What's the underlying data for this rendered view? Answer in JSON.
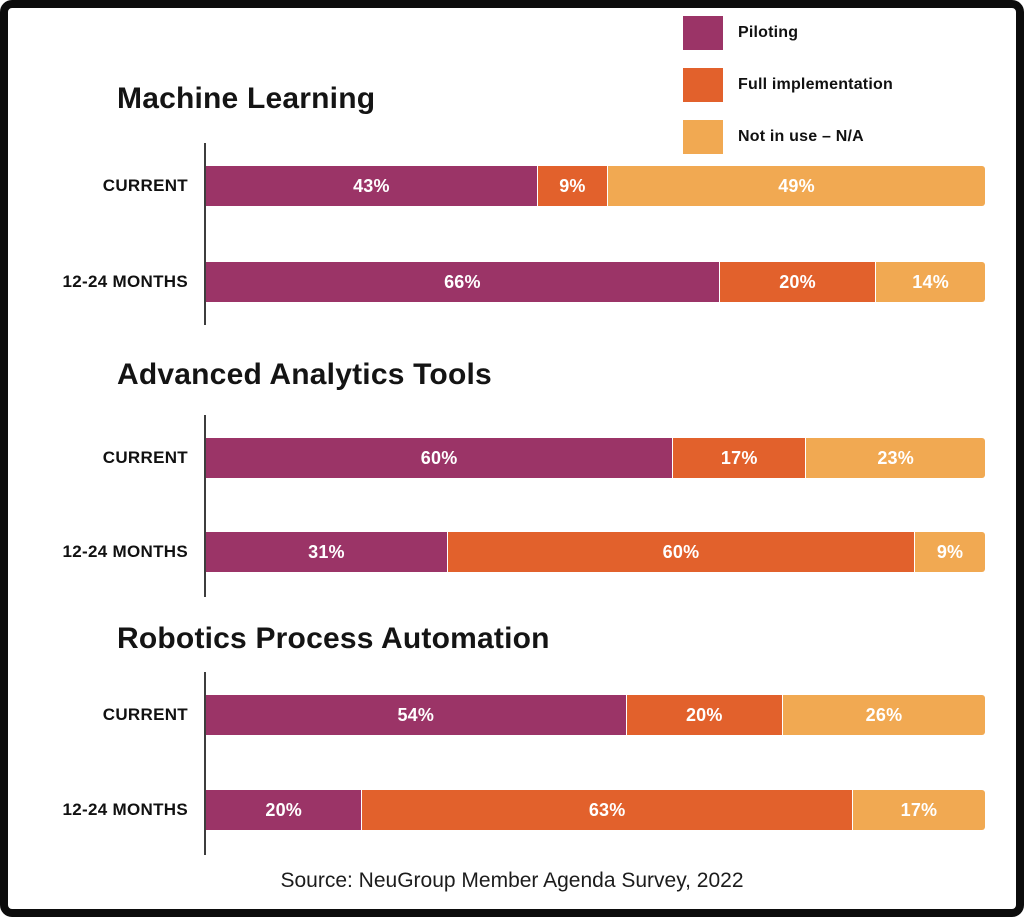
{
  "chart_data": {
    "type": "bar",
    "orientation": "horizontal",
    "stacked": true,
    "unit": "%",
    "xlim": [
      0,
      100
    ],
    "grid": false,
    "legend_position": "top-right",
    "legend": [
      {
        "label": "Piloting",
        "color": "#9B3467"
      },
      {
        "label": "Full implementation",
        "color": "#E2612C"
      },
      {
        "label": "Not in use – N/A",
        "color": "#F1A952"
      }
    ],
    "groups": [
      {
        "title": "Machine Learning",
        "rows": [
          {
            "label": "CURRENT",
            "values": [
              43,
              9,
              49
            ]
          },
          {
            "label": "12-24 MONTHS",
            "values": [
              66,
              20,
              14
            ]
          }
        ]
      },
      {
        "title": "Advanced Analytics Tools",
        "rows": [
          {
            "label": "CURRENT",
            "values": [
              60,
              17,
              23
            ]
          },
          {
            "label": "12-24 MONTHS",
            "values": [
              31,
              60,
              9
            ]
          }
        ]
      },
      {
        "title": "Robotics Process Automation",
        "rows": [
          {
            "label": "CURRENT",
            "values": [
              54,
              20,
              26
            ]
          },
          {
            "label": "12-24 MONTHS",
            "values": [
              20,
              63,
              17
            ]
          }
        ]
      }
    ],
    "source": "Source: NeuGroup Member Agenda Survey, 2022"
  }
}
